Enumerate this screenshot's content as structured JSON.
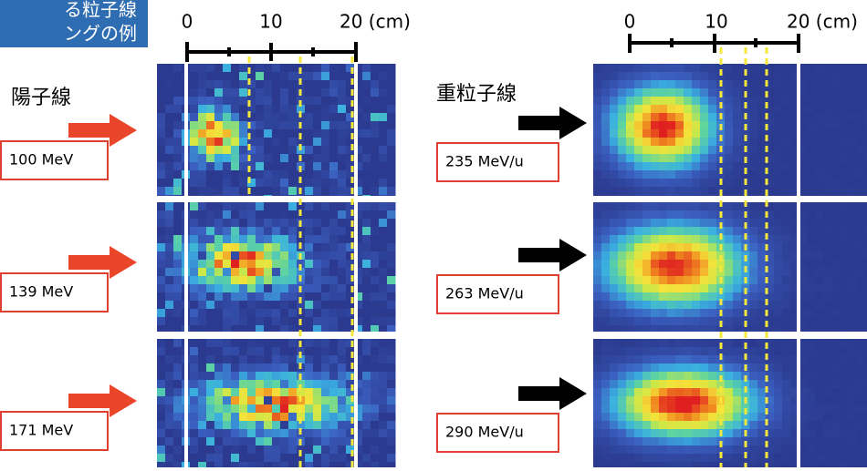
{
  "title": [
    "る粒子線",
    "ングの例"
  ],
  "left": {
    "label": "陽子線",
    "scale": [
      "0",
      "10",
      "20 (cm)"
    ],
    "energies": [
      "100 MeV",
      "139 MeV",
      "171 MeV"
    ]
  },
  "right": {
    "label": "重粒子線",
    "scale": [
      "0",
      "10",
      "20 (cm)"
    ],
    "energies": [
      "235 MeV/u",
      "263 MeV/u",
      "290 MeV/u"
    ]
  }
}
